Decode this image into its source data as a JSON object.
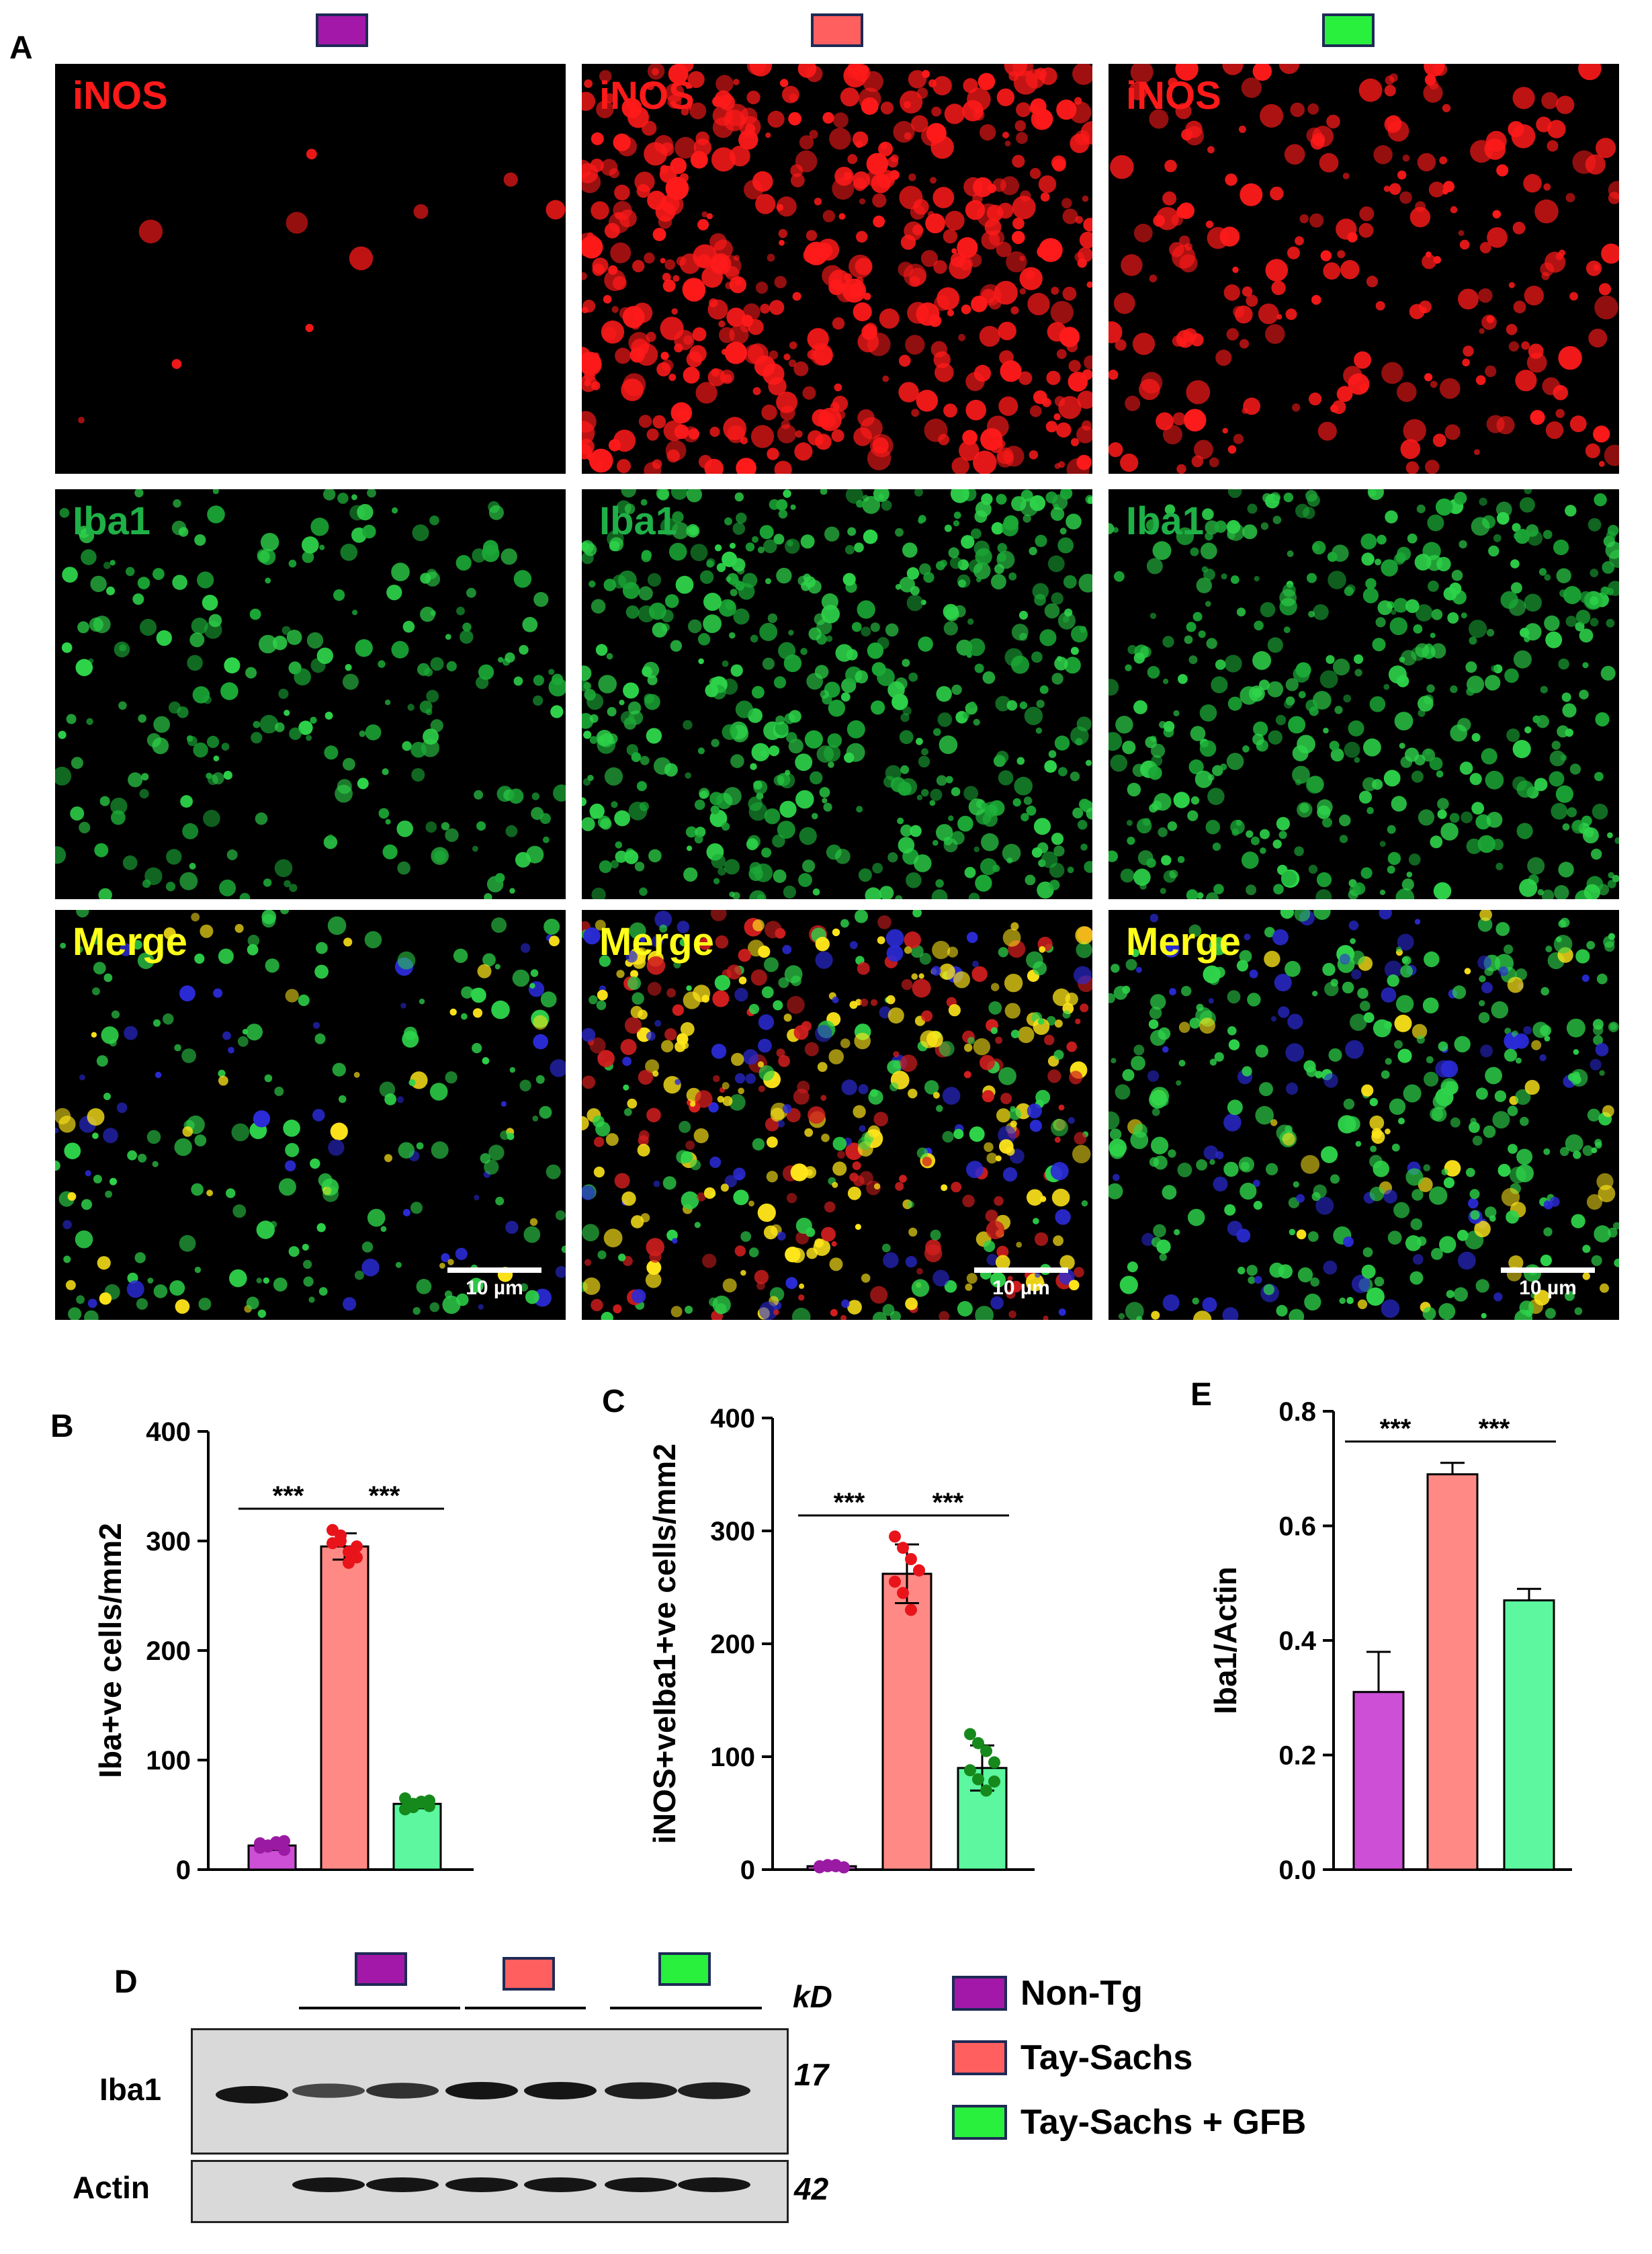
{
  "colors": {
    "non_tg": "#a318a8",
    "tay_sachs": "#ff5f5f",
    "tay_sachs_gfb": "#28f03c",
    "bar_non_tg": "#cc4fd6",
    "bar_tay_sachs": "#ff8a85",
    "bar_tay_sachs_gfb": "#5cf79e",
    "dot_non_tg": "#9a1aa3",
    "dot_tay_sachs": "#e8141a",
    "dot_tay_sachs_gfb": "#16891c"
  },
  "panels": {
    "a": "A",
    "b": "B",
    "c": "C",
    "d": "D",
    "e": "E"
  },
  "micrographs": {
    "rows": [
      {
        "label": "iNOS",
        "label_color": "#ff1a1a"
      },
      {
        "label": "Iba1",
        "label_color": "#1fb048"
      },
      {
        "label": "Merge",
        "label_color": "#ffff1a"
      }
    ],
    "scale_bar": "10 µm"
  },
  "chart_data": [
    {
      "panel": "B",
      "type": "bar",
      "categories": [
        "Non-Tg",
        "Tay-Sachs",
        "Tay-Sachs + GFB"
      ],
      "values": [
        22,
        295,
        60
      ],
      "errors": [
        4,
        12,
        4
      ],
      "points": [
        [
          20,
          22,
          25,
          18,
          24,
          21,
          23,
          26
        ],
        [
          310,
          300,
          290,
          285,
          298,
          305,
          280,
          295
        ],
        [
          55,
          60,
          62,
          58,
          65,
          57,
          61,
          63
        ]
      ],
      "ylabel": "Iba+ve cells/mm2",
      "ylim": [
        0,
        400
      ],
      "yticks": [
        0,
        100,
        200,
        300,
        400
      ],
      "significance": [
        {
          "from": 0,
          "to": 1,
          "label": "***"
        },
        {
          "from": 1,
          "to": 2,
          "label": "***"
        }
      ]
    },
    {
      "panel": "C",
      "type": "bar",
      "categories": [
        "Non-Tg",
        "Tay-Sachs",
        "Tay-Sachs + GFB"
      ],
      "values": [
        3,
        262,
        90
      ],
      "errors": [
        1,
        26,
        20
      ],
      "points": [
        [
          2,
          3,
          4,
          2,
          3,
          4,
          3,
          2
        ],
        [
          295,
          285,
          275,
          265,
          255,
          245,
          230,
          265
        ],
        [
          120,
          112,
          105,
          95,
          88,
          80,
          70,
          78
        ]
      ],
      "ylabel": "iNOS+veIba1+ve cells/mm2",
      "ylim": [
        0,
        400
      ],
      "yticks": [
        0,
        100,
        200,
        300,
        400
      ],
      "significance": [
        {
          "from": 0,
          "to": 1,
          "label": "***"
        },
        {
          "from": 1,
          "to": 2,
          "label": "***"
        }
      ]
    },
    {
      "panel": "E",
      "type": "bar",
      "categories": [
        "Non-Tg",
        "Tay-Sachs",
        "Tay-Sachs + GFB"
      ],
      "values": [
        0.31,
        0.69,
        0.47
      ],
      "errors": [
        0.07,
        0.02,
        0.02
      ],
      "ylabel": "Iba1/Actin",
      "ylim": [
        0,
        0.8
      ],
      "yticks": [
        "0.0",
        "0.2",
        "0.4",
        "0.6",
        "0.8"
      ],
      "significance": [
        {
          "from": 0,
          "to": 1,
          "label": "***"
        },
        {
          "from": 1,
          "to": 2,
          "label": "***"
        }
      ]
    }
  ],
  "blot": {
    "kd_label": "kD",
    "rows": [
      {
        "label": "Iba1",
        "kd": "17",
        "intensity": [
          1.0,
          0.55,
          0.75,
          1.0,
          1.0,
          0.9,
          0.9
        ]
      },
      {
        "label": "Actin",
        "kd": "42",
        "intensity": [
          0.0,
          1.0,
          1.0,
          1.0,
          1.0,
          1.0,
          1.0
        ]
      }
    ]
  },
  "legend": [
    {
      "key": "non_tg",
      "label": "Non-Tg"
    },
    {
      "key": "tay_sachs",
      "label": "Tay-Sachs"
    },
    {
      "key": "tay_sachs_gfb",
      "label": "Tay-Sachs + GFB"
    }
  ]
}
